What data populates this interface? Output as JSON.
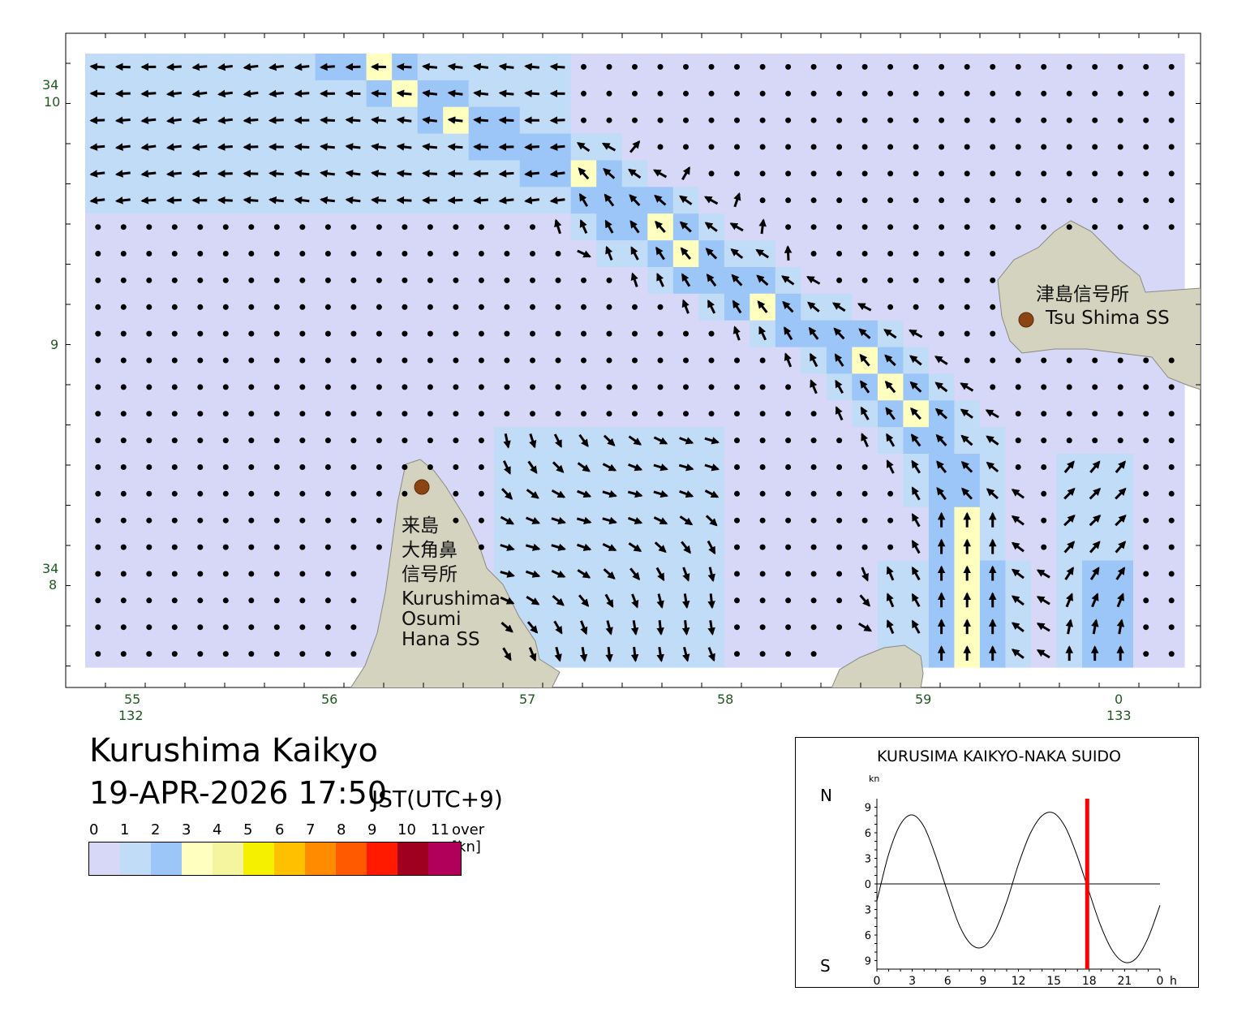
{
  "map": {
    "lat_labels": [
      {
        "deg": "34",
        "min": "10"
      },
      {
        "deg": "",
        "min": "9"
      },
      {
        "deg": "34",
        "min": "8"
      }
    ],
    "lon_labels": [
      {
        "min": "55",
        "deg": "132"
      },
      {
        "min": "56",
        "deg": ""
      },
      {
        "min": "57",
        "deg": ""
      },
      {
        "min": "58",
        "deg": ""
      },
      {
        "min": "59",
        "deg": ""
      },
      {
        "min": "0",
        "deg": "133"
      }
    ],
    "stations": [
      {
        "jp_lines": [
          "津島信号所"
        ],
        "en_lines": [
          "Tsu Shima SS"
        ]
      },
      {
        "jp_lines": [
          "来島",
          "大角鼻",
          "信号所"
        ],
        "en_lines": [
          "Kurushima",
          "Osumi",
          "Hana SS"
        ]
      }
    ],
    "colors": {
      "land": "#d4d3bf",
      "station_dot": "#8b4513",
      "c0": "#d7d7f7",
      "c1": "#c1dcf7",
      "c2": "#9dc6f8",
      "c3": "#ffffc0"
    }
  },
  "title": "Kurushima Kaikyo",
  "datetime": "19-APR-2026 17:50",
  "timezone": "JST(UTC+9)",
  "legend": {
    "ticks": [
      "0",
      "1",
      "2",
      "3",
      "4",
      "5",
      "6",
      "7",
      "8",
      "9",
      "10",
      "11"
    ],
    "unit": "over [kn]",
    "colors": [
      "#d7d7f7",
      "#c1dcf7",
      "#9dc6f8",
      "#ffffc0",
      "#f5f5a0",
      "#f5f000",
      "#ffc000",
      "#ff8c00",
      "#ff5a00",
      "#ff1a00",
      "#a00020",
      "#b0005a"
    ]
  },
  "tide_chart": {
    "title": "KURUSIMA KAIKYO-NAKA SUIDO",
    "unit": "kn",
    "north_label": "N",
    "south_label": "S",
    "hour_unit": "h",
    "y_tick_labels": [
      "9",
      "6",
      "3",
      "0",
      "3",
      "6",
      "9"
    ],
    "x_tick_labels": [
      "0",
      "3",
      "6",
      "9",
      "12",
      "15",
      "18",
      "21",
      "0"
    ],
    "current_time_marker_h": 17.83
  },
  "chart_data": {
    "type": "line",
    "title": "KURUSIMA KAIKYO-NAKA SUIDO",
    "xlabel": "h",
    "ylabel": "kn",
    "xlim": [
      0,
      24
    ],
    "ylim": [
      -10,
      10
    ],
    "series": [
      {
        "x": [
          0,
          1,
          2,
          3,
          4,
          5,
          6,
          7,
          8,
          9,
          10,
          11,
          12,
          13,
          14,
          15,
          16,
          17,
          18,
          19,
          20,
          21,
          22,
          23,
          24
        ],
        "values": [
          -2.0,
          3.5,
          7.0,
          8.1,
          6.7,
          3.2,
          -1.0,
          -4.9,
          -7.1,
          -7.4,
          -5.6,
          -2.1,
          2.3,
          5.9,
          8.0,
          8.3,
          6.6,
          3.2,
          -1.0,
          -5.0,
          -7.9,
          -9.2,
          -8.7,
          -6.3,
          -2.5
        ]
      }
    ]
  }
}
